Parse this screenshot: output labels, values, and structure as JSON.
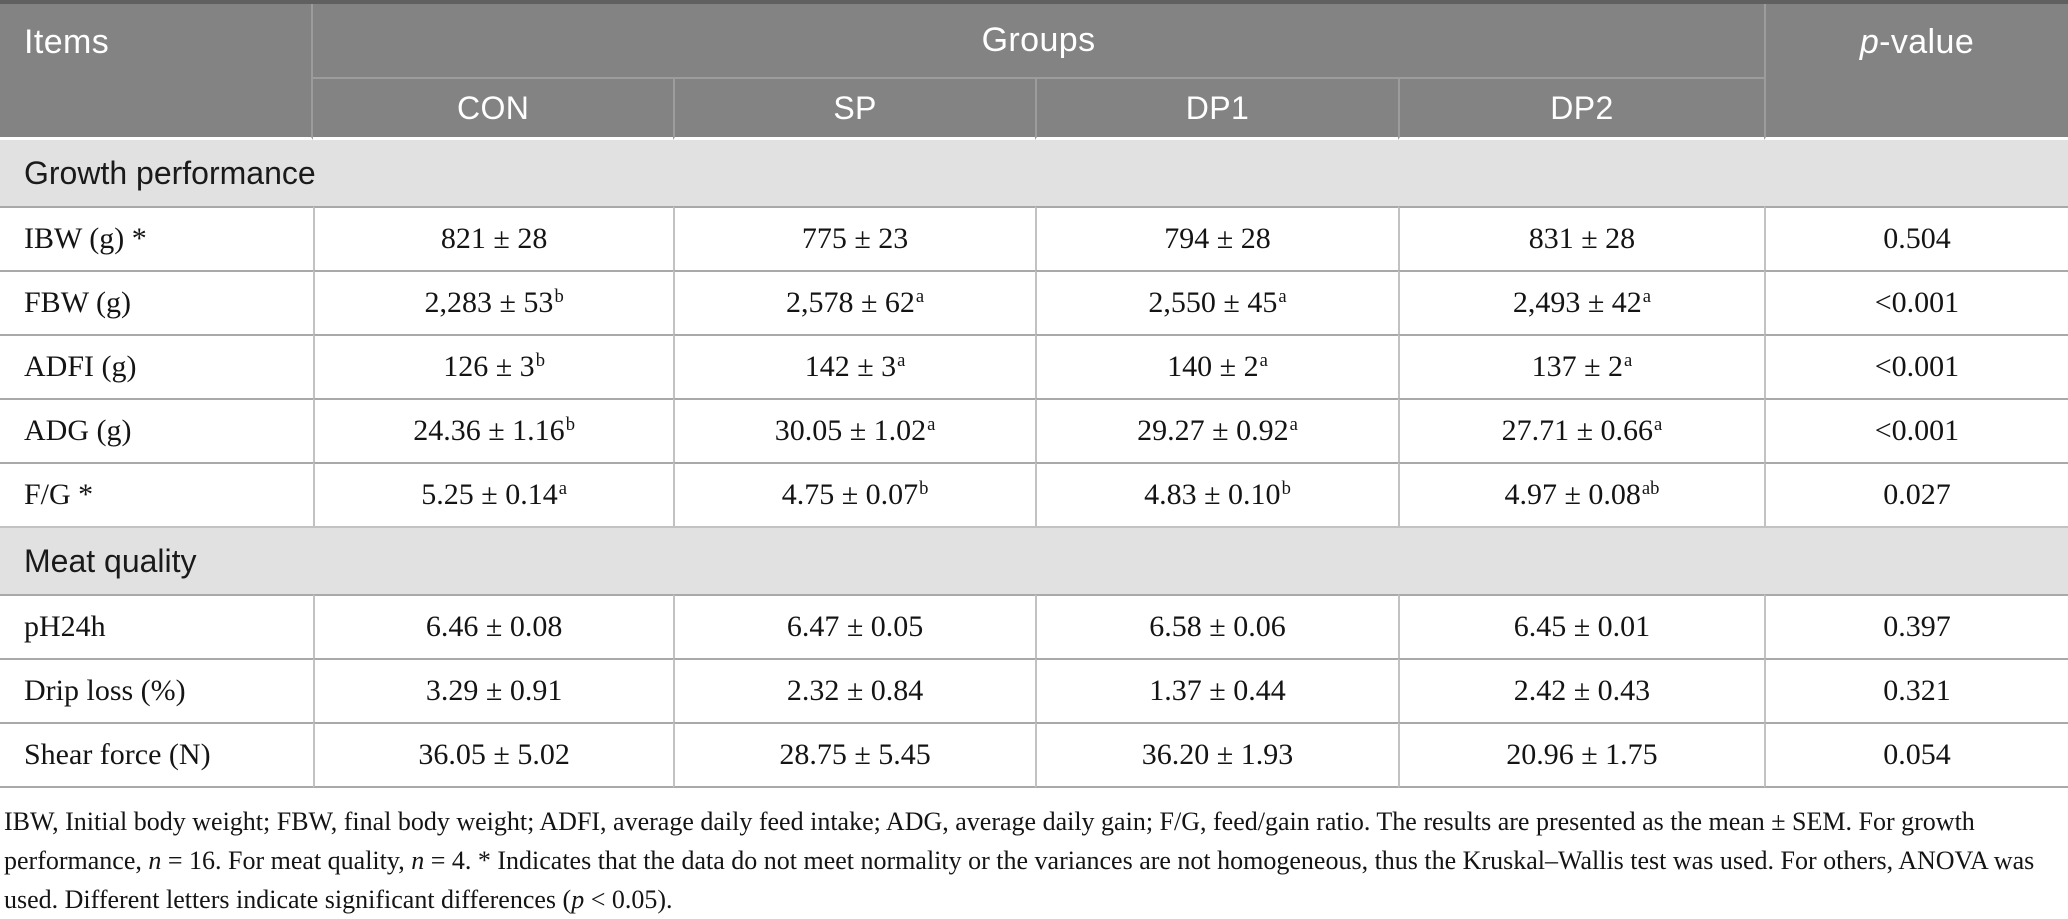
{
  "colors": {
    "header_bg": "#838383",
    "header_text": "#ffffff",
    "header_divider": "#9c9c9c",
    "section_bg": "#e2e1e1",
    "row_border": "#a9a9a9",
    "column_border": "#c2c2c2",
    "top_rule": "#606060",
    "body_text": "#141414"
  },
  "table": {
    "header": {
      "items_label": "Items",
      "groups_label": "Groups",
      "pvalue_italic": "p",
      "pvalue_rest": "-value",
      "group_columns": [
        "CON",
        "SP",
        "DP1",
        "DP2"
      ]
    },
    "sections": [
      {
        "title": "Growth performance",
        "rows": [
          {
            "item": "IBW (g) *",
            "values": [
              {
                "v": "821 ± 28"
              },
              {
                "v": "775 ± 23"
              },
              {
                "v": "794 ± 28"
              },
              {
                "v": "831 ± 28"
              }
            ],
            "p": "0.504"
          },
          {
            "item": "FBW (g)",
            "values": [
              {
                "v": "2,283 ± 53",
                "sup": "b"
              },
              {
                "v": "2,578 ± 62",
                "sup": "a"
              },
              {
                "v": "2,550 ± 45",
                "sup": "a"
              },
              {
                "v": "2,493 ± 42",
                "sup": "a"
              }
            ],
            "p": "<0.001"
          },
          {
            "item": "ADFI (g)",
            "values": [
              {
                "v": "126 ± 3",
                "sup": "b"
              },
              {
                "v": "142 ± 3",
                "sup": "a"
              },
              {
                "v": "140 ± 2",
                "sup": "a"
              },
              {
                "v": "137 ± 2",
                "sup": "a"
              }
            ],
            "p": "<0.001"
          },
          {
            "item": "ADG (g)",
            "values": [
              {
                "v": "24.36 ± 1.16",
                "sup": "b"
              },
              {
                "v": "30.05 ± 1.02",
                "sup": "a"
              },
              {
                "v": "29.27 ± 0.92",
                "sup": "a"
              },
              {
                "v": "27.71 ± 0.66",
                "sup": "a"
              }
            ],
            "p": "<0.001"
          },
          {
            "item": "F/G *",
            "values": [
              {
                "v": "5.25 ± 0.14",
                "sup": "a"
              },
              {
                "v": "4.75 ± 0.07",
                "sup": "b"
              },
              {
                "v": "4.83 ± 0.10",
                "sup": "b"
              },
              {
                "v": "4.97 ± 0.08",
                "sup": "ab"
              }
            ],
            "p": "0.027"
          }
        ]
      },
      {
        "title": "Meat quality",
        "rows": [
          {
            "item": "pH24h",
            "values": [
              {
                "v": "6.46 ± 0.08"
              },
              {
                "v": "6.47 ± 0.05"
              },
              {
                "v": "6.58 ± 0.06"
              },
              {
                "v": "6.45 ± 0.01"
              }
            ],
            "p": "0.397"
          },
          {
            "item": "Drip loss (%)",
            "values": [
              {
                "v": "3.29 ± 0.91"
              },
              {
                "v": "2.32 ± 0.84"
              },
              {
                "v": "1.37 ± 0.44"
              },
              {
                "v": "2.42 ± 0.43"
              }
            ],
            "p": "0.321"
          },
          {
            "item": "Shear force (N)",
            "values": [
              {
                "v": "36.05 ± 5.02"
              },
              {
                "v": "28.75 ± 5.45"
              },
              {
                "v": "36.20 ± 1.93"
              },
              {
                "v": "20.96 ± 1.75"
              }
            ],
            "p": "0.054"
          }
        ]
      }
    ]
  },
  "footnote": {
    "segments": [
      {
        "text": "IBW, Initial body weight; FBW, final body weight; ADFI, average daily feed intake; ADG, average daily gain; F/G, feed/gain ratio. The results are presented as the mean ± SEM. For growth performance, ",
        "italic": false
      },
      {
        "text": "n",
        "italic": true
      },
      {
        "text": " = 16. For meat quality, ",
        "italic": false
      },
      {
        "text": "n",
        "italic": true
      },
      {
        "text": " = 4. * Indicates that the data do not meet normality or the variances are not homogeneous, thus the Kruskal–Wallis test was used. For others, ANOVA was used. Different letters indicate significant differences (",
        "italic": false
      },
      {
        "text": "p",
        "italic": true
      },
      {
        "text": " < 0.05).",
        "italic": false
      }
    ]
  }
}
